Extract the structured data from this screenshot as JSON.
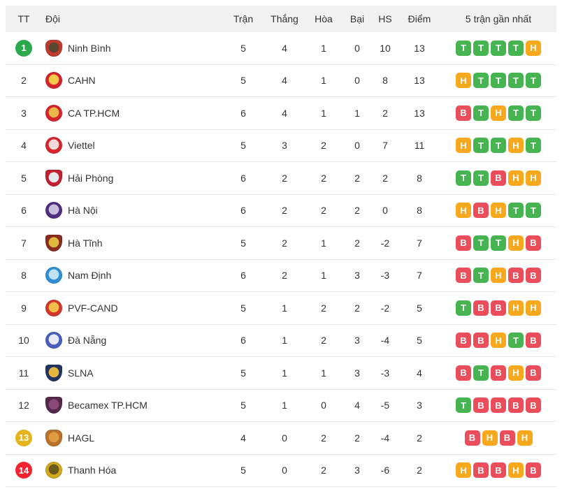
{
  "header": {
    "columns": [
      "TT",
      "Đội",
      "Trận",
      "Thắng",
      "Hòa",
      "Bại",
      "HS",
      "Điểm",
      "5 trận gần nhất"
    ]
  },
  "colors": {
    "form_win": "#46b450",
    "form_draw": "#f7a81d",
    "form_loss": "#eb4d5a",
    "marker_green": "#2baa4d",
    "marker_yellow": "#e4b41d",
    "marker_red": "#f2222e",
    "header_bg": "#f1f1f1",
    "row_border": "#e9e9e9",
    "text": "#333333"
  },
  "rows": [
    {
      "pos": "1",
      "marker": "green",
      "team": "Ninh Bình",
      "played": "5",
      "won": "4",
      "drawn": "1",
      "lost": "0",
      "gd": "10",
      "points": "13",
      "form": [
        "T",
        "T",
        "T",
        "T",
        "H"
      ],
      "logo": {
        "shape": "crest",
        "ring": "#c23a2e",
        "center": "#5b4632"
      }
    },
    {
      "pos": "2",
      "marker": null,
      "team": "CAHN",
      "played": "5",
      "won": "4",
      "drawn": "1",
      "lost": "0",
      "gd": "8",
      "points": "13",
      "form": [
        "H",
        "T",
        "T",
        "T",
        "T"
      ],
      "logo": {
        "shape": "circle",
        "ring": "#d5222e",
        "center": "#f3c84b"
      }
    },
    {
      "pos": "3",
      "marker": null,
      "team": "CA TP.HCM",
      "played": "6",
      "won": "4",
      "drawn": "1",
      "lost": "1",
      "gd": "2",
      "points": "13",
      "form": [
        "B",
        "T",
        "H",
        "T",
        "T"
      ],
      "logo": {
        "shape": "circle",
        "ring": "#d6242b",
        "center": "#e8b84a"
      }
    },
    {
      "pos": "4",
      "marker": null,
      "team": "Viettel",
      "played": "5",
      "won": "3",
      "drawn": "2",
      "lost": "0",
      "gd": "7",
      "points": "11",
      "form": [
        "H",
        "T",
        "T",
        "H",
        "T"
      ],
      "logo": {
        "shape": "circle",
        "ring": "#d8252c",
        "center": "#f3dada"
      }
    },
    {
      "pos": "5",
      "marker": null,
      "team": "Hải Phòng",
      "played": "6",
      "won": "2",
      "drawn": "2",
      "lost": "2",
      "gd": "2",
      "points": "8",
      "form": [
        "T",
        "T",
        "B",
        "H",
        "H"
      ],
      "logo": {
        "shape": "shield",
        "ring": "#c21f30",
        "center": "#e5e8ec"
      }
    },
    {
      "pos": "6",
      "marker": null,
      "team": "Hà Nội",
      "played": "6",
      "won": "2",
      "drawn": "2",
      "lost": "2",
      "gd": "0",
      "points": "8",
      "form": [
        "H",
        "B",
        "H",
        "T",
        "T"
      ],
      "logo": {
        "shape": "circle",
        "ring": "#4f2d7f",
        "center": "#c9bfdd"
      }
    },
    {
      "pos": "7",
      "marker": null,
      "team": "Hà Tĩnh",
      "played": "5",
      "won": "2",
      "drawn": "1",
      "lost": "2",
      "gd": "-2",
      "points": "7",
      "form": [
        "B",
        "T",
        "T",
        "H",
        "B"
      ],
      "logo": {
        "shape": "shield",
        "ring": "#8a2b20",
        "center": "#e0b83e"
      }
    },
    {
      "pos": "8",
      "marker": null,
      "team": "Nam Định",
      "played": "6",
      "won": "2",
      "drawn": "1",
      "lost": "3",
      "gd": "-3",
      "points": "7",
      "form": [
        "B",
        "T",
        "H",
        "B",
        "B"
      ],
      "logo": {
        "shape": "circle",
        "ring": "#2e8fd5",
        "center": "#bfe0f5"
      }
    },
    {
      "pos": "9",
      "marker": null,
      "team": "PVF-CAND",
      "played": "5",
      "won": "1",
      "drawn": "2",
      "lost": "2",
      "gd": "-2",
      "points": "5",
      "form": [
        "T",
        "B",
        "B",
        "H",
        "H"
      ],
      "logo": {
        "shape": "circle",
        "ring": "#d4372b",
        "center": "#f2c04a"
      }
    },
    {
      "pos": "10",
      "marker": null,
      "team": "Đà Nẵng",
      "played": "6",
      "won": "1",
      "drawn": "2",
      "lost": "3",
      "gd": "-4",
      "points": "5",
      "form": [
        "B",
        "B",
        "H",
        "T",
        "B"
      ],
      "logo": {
        "shape": "circle",
        "ring": "#4a5ec2",
        "center": "#e8ecf8"
      }
    },
    {
      "pos": "11",
      "marker": null,
      "team": "SLNA",
      "played": "5",
      "won": "1",
      "drawn": "1",
      "lost": "3",
      "gd": "-3",
      "points": "4",
      "form": [
        "B",
        "T",
        "B",
        "H",
        "B"
      ],
      "logo": {
        "shape": "shield",
        "ring": "#223263",
        "center": "#e3b63d"
      }
    },
    {
      "pos": "12",
      "marker": null,
      "team": "Becamex TP.HCM",
      "played": "5",
      "won": "1",
      "drawn": "0",
      "lost": "4",
      "gd": "-5",
      "points": "3",
      "form": [
        "T",
        "B",
        "B",
        "B",
        "B"
      ],
      "logo": {
        "shape": "shield",
        "ring": "#55284b",
        "center": "#8a4a78"
      }
    },
    {
      "pos": "13",
      "marker": "yellow",
      "team": "HAGL",
      "played": "4",
      "won": "0",
      "drawn": "2",
      "lost": "2",
      "gd": "-4",
      "points": "2",
      "form": [
        "B",
        "H",
        "B",
        "H"
      ],
      "logo": {
        "shape": "crest",
        "ring": "#b8722c",
        "center": "#e09a3f"
      }
    },
    {
      "pos": "14",
      "marker": "red",
      "team": "Thanh Hóa",
      "played": "5",
      "won": "0",
      "drawn": "2",
      "lost": "3",
      "gd": "-6",
      "points": "2",
      "form": [
        "H",
        "B",
        "B",
        "H",
        "B"
      ],
      "logo": {
        "shape": "circle",
        "ring": "#d3a81c",
        "center": "#6b5a1e"
      }
    }
  ]
}
